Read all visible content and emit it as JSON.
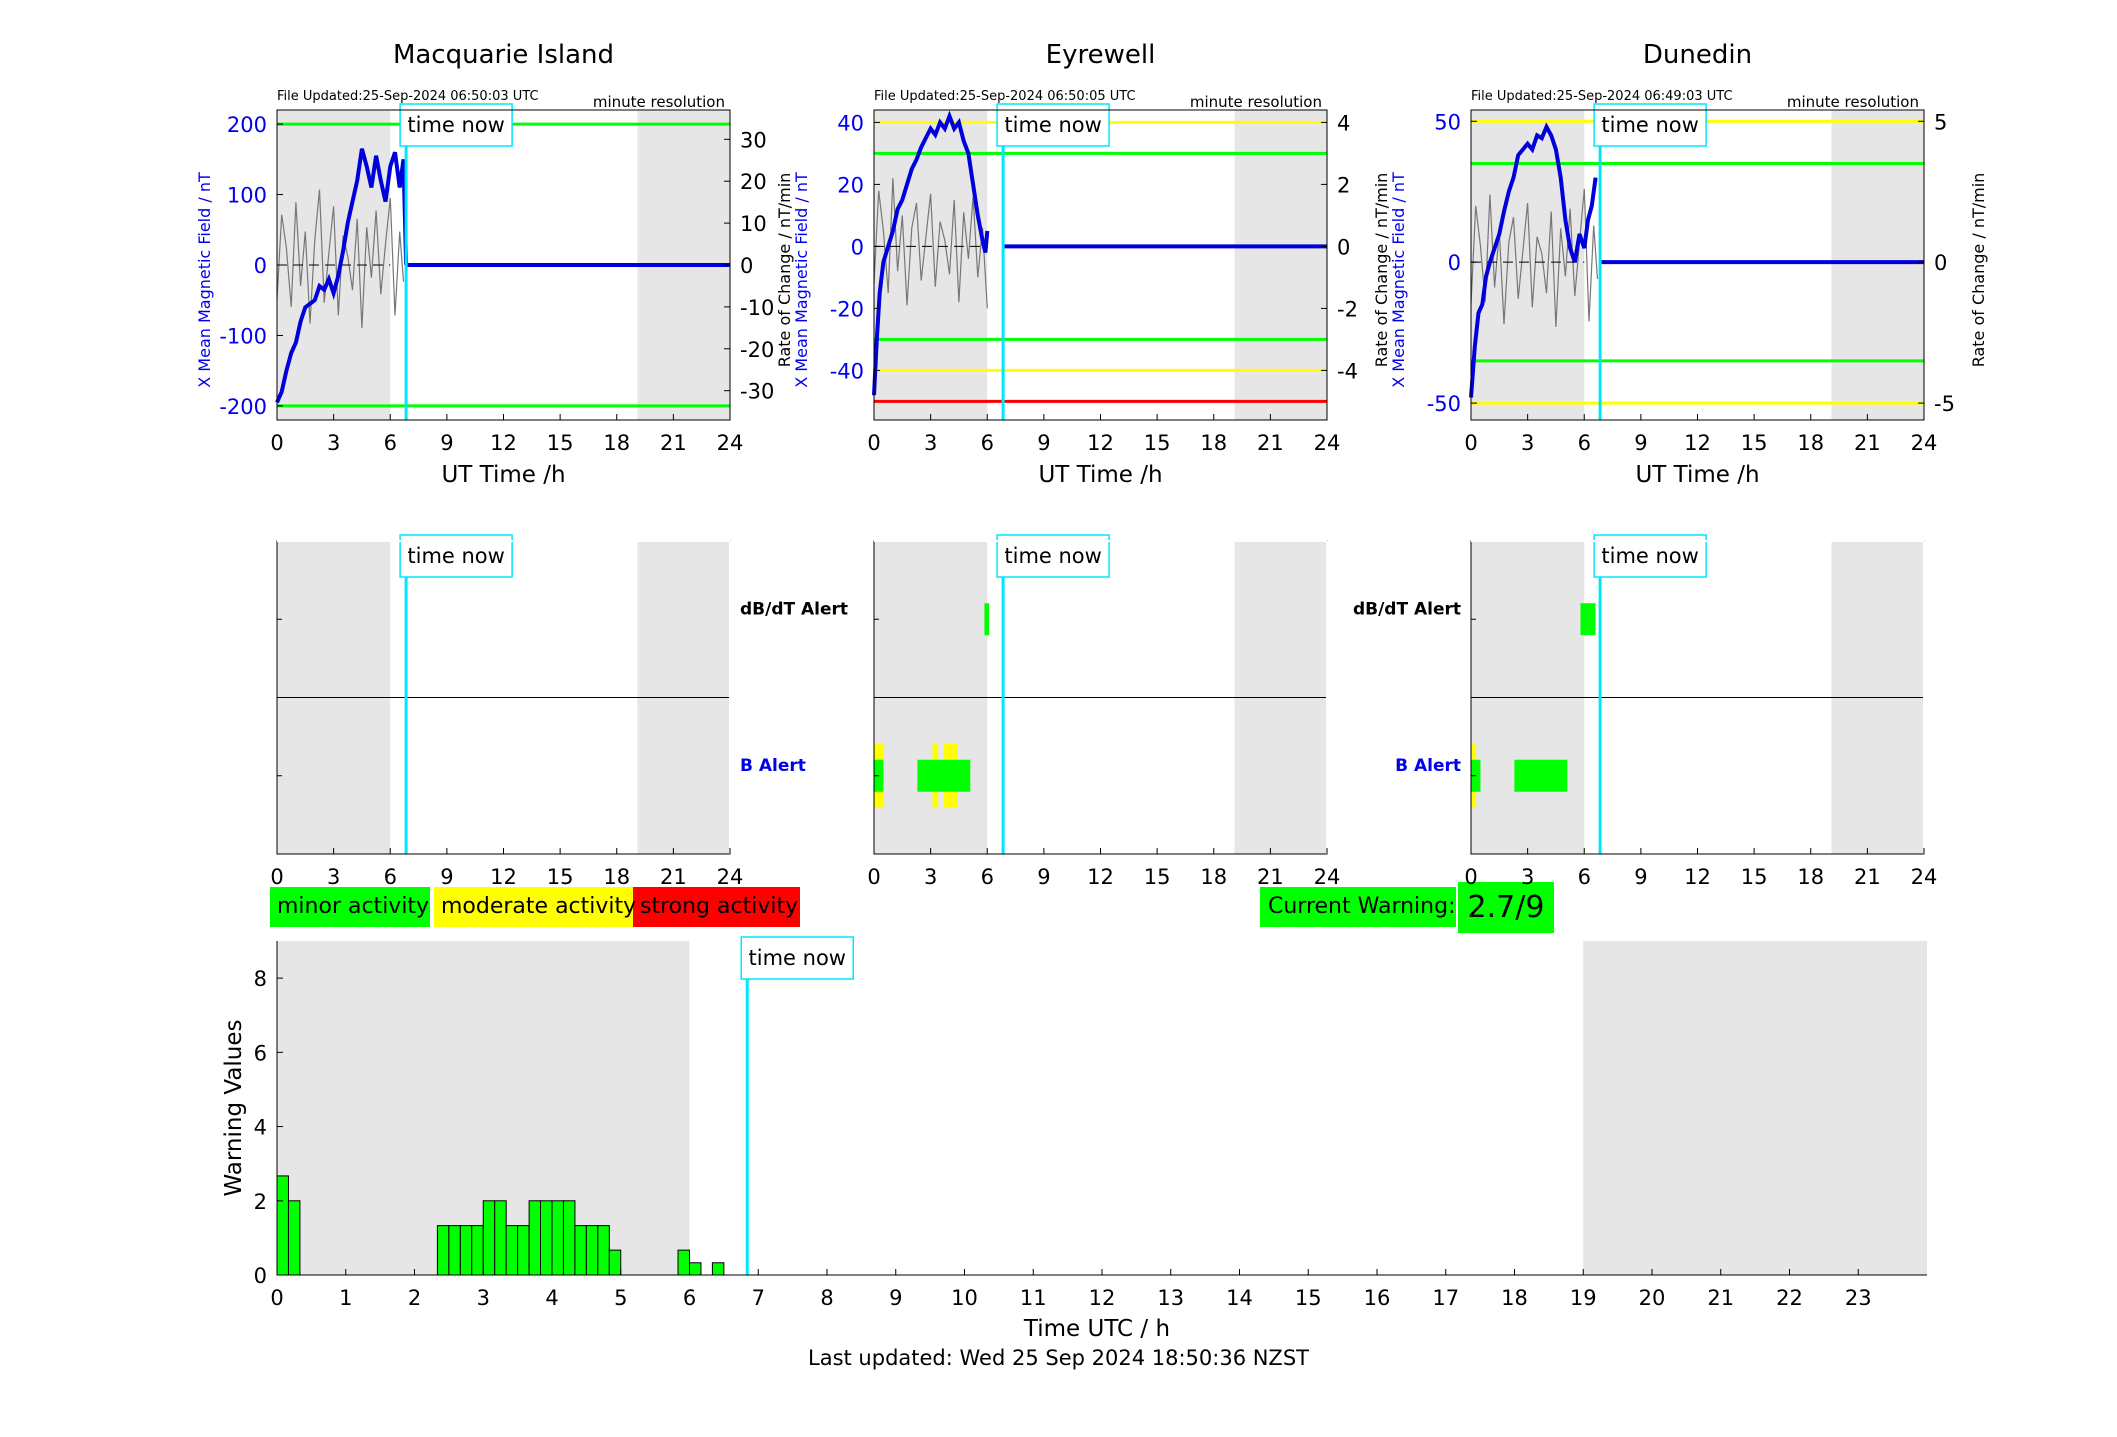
{
  "colors": {
    "minor": "#00ff00",
    "moderate": "#ffff00",
    "strong": "#ff0000",
    "now_line": "#00e6ff",
    "x_field": "#0000dd",
    "axis_blue": "#0000ee",
    "shade": "#e6e6e6"
  },
  "common": {
    "time_now_label": "time now",
    "minute_resolution": "minute resolution",
    "x_axis_label": "UT Time /h",
    "y_left_label": "X Mean Magnetic Field / nT",
    "y_right_label": "Rate of Change / nT/min",
    "dbdt_alert_label": "dB/dT Alert",
    "b_alert_label": "B Alert",
    "hour_ticks": [
      "0",
      "3",
      "6",
      "9",
      "12",
      "15",
      "18",
      "21",
      "24"
    ]
  },
  "legend": {
    "minor": "minor activity",
    "moderate": "moderate activity",
    "strong": "strong activity"
  },
  "current_warning": {
    "label": "Current Warning:",
    "value": "2.7/9"
  },
  "footer": {
    "last_updated": "Last updated: Wed 25 Sep 2024 18:50:36 NZST"
  },
  "chart_data": [
    {
      "type": "line",
      "station": "Macquarie Island",
      "file_updated": "File Updated:25-Sep-2024 06:50:03 UTC",
      "time_now_hour": 6.84,
      "xlim": [
        0,
        24
      ],
      "ylim": [
        -220,
        220
      ],
      "y2lim": [
        -37,
        37
      ],
      "yticks": [
        -200,
        -100,
        0,
        100,
        200
      ],
      "y2ticks": [
        -30,
        -20,
        -10,
        0,
        10,
        20,
        30
      ],
      "thresholds": [
        {
          "value": 200,
          "level": "minor"
        },
        {
          "value": -200,
          "level": "minor"
        }
      ],
      "x_series": {
        "name": "X Mean Magnetic Field / nT",
        "x": [
          0,
          0.25,
          0.5,
          0.75,
          1.0,
          1.25,
          1.5,
          1.75,
          2.0,
          2.25,
          2.5,
          2.75,
          3.0,
          3.25,
          3.5,
          3.75,
          4.0,
          4.25,
          4.5,
          4.75,
          5.0,
          5.25,
          5.5,
          5.75,
          6.0,
          6.25,
          6.5,
          6.7,
          6.84
        ],
        "values": [
          -195,
          -180,
          -150,
          -125,
          -110,
          -80,
          -60,
          -55,
          -50,
          -30,
          -35,
          -20,
          -40,
          -15,
          20,
          60,
          90,
          120,
          165,
          140,
          110,
          155,
          120,
          90,
          140,
          160,
          110,
          150,
          0
        ]
      },
      "rate_series": {
        "name": "Rate of Change / nT/min",
        "x": [
          0,
          0.25,
          0.5,
          0.75,
          1.0,
          1.25,
          1.5,
          1.75,
          2.0,
          2.25,
          2.5,
          2.75,
          3.0,
          3.25,
          3.5,
          3.75,
          4.0,
          4.25,
          4.5,
          4.75,
          5.0,
          5.25,
          5.5,
          5.75,
          6.0,
          6.25,
          6.5,
          6.7
        ],
        "values": [
          -8,
          12,
          4,
          -10,
          15,
          -5,
          8,
          -14,
          6,
          18,
          -9,
          3,
          14,
          -12,
          7,
          2,
          -6,
          11,
          -15,
          9,
          -3,
          13,
          -7,
          5,
          16,
          -12,
          8,
          -4
        ]
      }
    },
    {
      "type": "line",
      "station": "Eyrewell",
      "file_updated": "File Updated:25-Sep-2024 06:50:05 UTC",
      "time_now_hour": 6.84,
      "xlim": [
        0,
        24
      ],
      "ylim": [
        -56,
        44
      ],
      "y2lim": [
        -5.6,
        4.4
      ],
      "yticks": [
        -40,
        -20,
        0,
        20,
        40
      ],
      "y2ticks": [
        -4,
        -2,
        0,
        2,
        4
      ],
      "thresholds": [
        {
          "value": 40,
          "level": "moderate"
        },
        {
          "value": 30,
          "level": "minor"
        },
        {
          "value": -30,
          "level": "minor"
        },
        {
          "value": -40,
          "level": "moderate"
        },
        {
          "value": -50,
          "level": "strong"
        }
      ],
      "x_series": {
        "name": "X Mean Magnetic Field / nT",
        "x": [
          0,
          0.15,
          0.3,
          0.5,
          0.75,
          1.0,
          1.25,
          1.5,
          1.75,
          2.0,
          2.25,
          2.5,
          2.75,
          3.0,
          3.25,
          3.5,
          3.75,
          4.0,
          4.25,
          4.5,
          4.75,
          5.0,
          5.25,
          5.5,
          5.75,
          5.9,
          6.0
        ],
        "values": [
          -48,
          -30,
          -15,
          -5,
          0,
          5,
          12,
          15,
          20,
          25,
          28,
          32,
          35,
          38,
          36,
          40,
          38,
          42,
          38,
          40,
          34,
          30,
          20,
          10,
          2,
          -2,
          5
        ]
      },
      "rate_series": {
        "name": "Rate of Change / nT/min",
        "x": [
          0,
          0.25,
          0.5,
          0.75,
          1.0,
          1.25,
          1.5,
          1.75,
          2.0,
          2.25,
          2.5,
          2.75,
          3.0,
          3.25,
          3.5,
          3.75,
          4.0,
          4.25,
          4.5,
          4.75,
          5.0,
          5.25,
          5.5,
          5.75,
          6.0
        ],
        "values": [
          -1.2,
          1.8,
          0.5,
          -1.5,
          2.2,
          -0.8,
          1.0,
          -1.9,
          0.6,
          1.4,
          -1.1,
          0.3,
          1.7,
          -1.3,
          0.8,
          0.2,
          -0.9,
          1.5,
          -1.8,
          1.1,
          -0.4,
          1.6,
          -1.0,
          0.6,
          -2.0
        ]
      }
    },
    {
      "type": "line",
      "station": "Dunedin",
      "file_updated": "File Updated:25-Sep-2024 06:49:03 UTC",
      "time_now_hour": 6.84,
      "xlim": [
        0,
        24
      ],
      "ylim": [
        -56,
        54
      ],
      "y2lim": [
        -5.6,
        5.4
      ],
      "yticks": [
        -50,
        0,
        50
      ],
      "y2ticks": [
        -5,
        0,
        5
      ],
      "thresholds": [
        {
          "value": 50,
          "level": "moderate"
        },
        {
          "value": 35,
          "level": "minor"
        },
        {
          "value": -35,
          "level": "minor"
        },
        {
          "value": -50,
          "level": "moderate"
        }
      ],
      "x_series": {
        "name": "X Mean Magnetic Field / nT",
        "x": [
          0,
          0.2,
          0.4,
          0.6,
          0.8,
          1.0,
          1.25,
          1.5,
          1.75,
          2.0,
          2.25,
          2.5,
          2.75,
          3.0,
          3.25,
          3.5,
          3.75,
          4.0,
          4.25,
          4.5,
          4.75,
          5.0,
          5.25,
          5.5,
          5.75,
          6.0,
          6.2,
          6.4,
          6.6
        ],
        "values": [
          -48,
          -30,
          -18,
          -15,
          -5,
          0,
          5,
          10,
          18,
          25,
          30,
          38,
          40,
          42,
          40,
          45,
          44,
          48,
          45,
          40,
          30,
          15,
          5,
          0,
          10,
          5,
          15,
          20,
          30
        ]
      },
      "rate_series": {
        "name": "Rate of Change / nT/min",
        "x": [
          0,
          0.25,
          0.5,
          0.75,
          1.0,
          1.25,
          1.5,
          1.75,
          2.0,
          2.25,
          2.5,
          2.75,
          3.0,
          3.25,
          3.5,
          3.75,
          4.0,
          4.25,
          4.5,
          4.75,
          5.0,
          5.25,
          5.5,
          5.75,
          6.0,
          6.25,
          6.5,
          6.7
        ],
        "values": [
          -1.5,
          2.0,
          0.6,
          -1.4,
          2.4,
          -0.9,
          1.1,
          -2.2,
          0.7,
          1.6,
          -1.3,
          0.4,
          2.1,
          -1.6,
          0.9,
          0.3,
          -1.1,
          1.8,
          -2.3,
          1.2,
          -0.5,
          1.9,
          -1.2,
          0.7,
          2.6,
          -2.1,
          1.3,
          -0.6
        ]
      }
    },
    {
      "type": "timeline",
      "station": "Macquarie Island",
      "time_now_hour": 6.84,
      "xlim": [
        0,
        24
      ],
      "dbdt_alerts": [],
      "b_alerts": []
    },
    {
      "type": "timeline",
      "station": "Eyrewell",
      "time_now_hour": 6.84,
      "xlim": [
        0,
        24
      ],
      "dbdt_alerts": [
        {
          "start": 5.85,
          "end": 6.1,
          "level": "minor"
        }
      ],
      "b_alerts": [
        {
          "start": 0.0,
          "end": 0.5,
          "level": "moderate"
        },
        {
          "start": 0.0,
          "end": 0.5,
          "level": "minor",
          "thin": true
        },
        {
          "start": 3.1,
          "end": 3.4,
          "level": "moderate"
        },
        {
          "start": 3.7,
          "end": 4.4,
          "level": "moderate"
        },
        {
          "start": 2.3,
          "end": 5.1,
          "level": "minor",
          "thin": true
        }
      ]
    },
    {
      "type": "timeline",
      "station": "Dunedin",
      "time_now_hour": 6.84,
      "xlim": [
        0,
        24
      ],
      "dbdt_alerts": [
        {
          "start": 5.8,
          "end": 6.6,
          "level": "minor"
        }
      ],
      "b_alerts": [
        {
          "start": 0.0,
          "end": 0.25,
          "level": "moderate"
        },
        {
          "start": 0.0,
          "end": 0.5,
          "level": "minor",
          "thin": true
        },
        {
          "start": 2.3,
          "end": 5.1,
          "level": "minor",
          "thin": true
        }
      ]
    },
    {
      "type": "bar",
      "title": "",
      "xlabel": "Time UTC / h",
      "ylabel": "Warning Values",
      "time_now_hour": 6.84,
      "xlim": [
        0,
        24
      ],
      "ylim": [
        0,
        9
      ],
      "xticks": [
        "0",
        "1",
        "2",
        "3",
        "4",
        "5",
        "6",
        "7",
        "8",
        "9",
        "10",
        "11",
        "12",
        "13",
        "14",
        "15",
        "16",
        "17",
        "18",
        "19",
        "20",
        "21",
        "22",
        "23"
      ],
      "yticks": [
        "0",
        "2",
        "4",
        "6",
        "8"
      ],
      "bar_width_hours": 0.1667,
      "bars": [
        {
          "x": 0.0,
          "value": 2.67
        },
        {
          "x": 0.1667,
          "value": 2.0
        },
        {
          "x": 2.333,
          "value": 1.33
        },
        {
          "x": 2.5,
          "value": 1.33
        },
        {
          "x": 2.667,
          "value": 1.33
        },
        {
          "x": 2.833,
          "value": 1.33
        },
        {
          "x": 3.0,
          "value": 2.0
        },
        {
          "x": 3.167,
          "value": 2.0
        },
        {
          "x": 3.333,
          "value": 1.33
        },
        {
          "x": 3.5,
          "value": 1.33
        },
        {
          "x": 3.667,
          "value": 2.0
        },
        {
          "x": 3.833,
          "value": 2.0
        },
        {
          "x": 4.0,
          "value": 2.0
        },
        {
          "x": 4.167,
          "value": 2.0
        },
        {
          "x": 4.333,
          "value": 1.33
        },
        {
          "x": 4.5,
          "value": 1.33
        },
        {
          "x": 4.667,
          "value": 1.33
        },
        {
          "x": 4.833,
          "value": 0.67
        },
        {
          "x": 5.833,
          "value": 0.67
        },
        {
          "x": 6.0,
          "value": 0.33
        },
        {
          "x": 6.333,
          "value": 0.33
        }
      ]
    }
  ]
}
